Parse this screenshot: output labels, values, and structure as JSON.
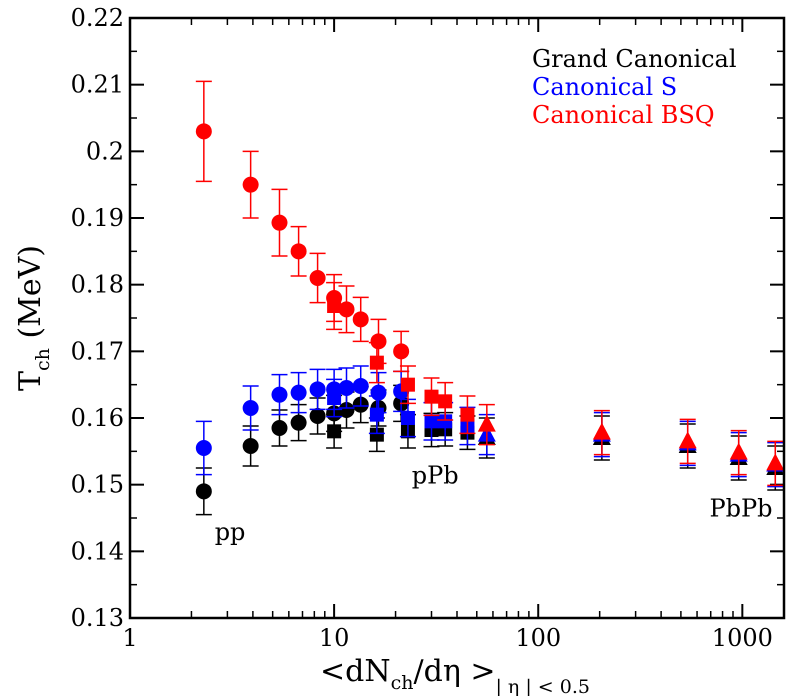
{
  "chart_data": {
    "type": "scatter",
    "xscale": "log",
    "xlim": [
      1,
      1600
    ],
    "ylim": [
      0.13,
      0.22
    ],
    "yticks": [
      "0.13",
      "0.14",
      "0.15",
      "0.16",
      "0.17",
      "0.18",
      "0.19",
      "0.2",
      "0.21",
      "0.22"
    ],
    "xticks": [
      "1",
      "10",
      "100",
      "1000"
    ],
    "ylabel": {
      "main": "T",
      "sub": "ch",
      "rest": " (MeV)"
    },
    "xlabel": {
      "p1": "<dN",
      "sub1": "ch",
      "p2": "/d",
      "eta": "η",
      "p3": " >",
      "sub2": "| η | < 0.5"
    },
    "legend_position": "top-right",
    "colors": {
      "grand": "#000000",
      "canon_s": "#0000ff",
      "canon_bsq": "#ff0000"
    },
    "series": [
      {
        "name": "Grand Canonical",
        "color": "#000000",
        "pp": [
          {
            "x": 2.3,
            "y": 0.149,
            "err": 0.0035
          },
          {
            "x": 3.9,
            "y": 0.1558,
            "err": 0.003
          },
          {
            "x": 5.4,
            "y": 0.1585,
            "err": 0.0027
          },
          {
            "x": 6.7,
            "y": 0.1593,
            "err": 0.0027
          },
          {
            "x": 8.3,
            "y": 0.1603,
            "err": 0.0027
          },
          {
            "x": 10.0,
            "y": 0.1607,
            "err": 0.0027
          },
          {
            "x": 11.5,
            "y": 0.1612,
            "err": 0.0027
          },
          {
            "x": 13.5,
            "y": 0.162,
            "err": 0.0027
          },
          {
            "x": 16.5,
            "y": 0.1615,
            "err": 0.0027
          },
          {
            "x": 21.3,
            "y": 0.1622,
            "err": 0.0027
          }
        ],
        "ppb": [
          {
            "x": 10.0,
            "y": 0.158,
            "err": 0.0025
          },
          {
            "x": 16.2,
            "y": 0.1575,
            "err": 0.0025
          },
          {
            "x": 23.0,
            "y": 0.158,
            "err": 0.0025
          },
          {
            "x": 30.0,
            "y": 0.1582,
            "err": 0.0025
          },
          {
            "x": 35.0,
            "y": 0.1583,
            "err": 0.0025
          },
          {
            "x": 45.0,
            "y": 0.1578,
            "err": 0.0025
          }
        ],
        "pbpb": [
          {
            "x": 56,
            "y": 0.157,
            "err": 0.003
          },
          {
            "x": 205,
            "y": 0.157,
            "err": 0.0033
          },
          {
            "x": 540,
            "y": 0.1558,
            "err": 0.0033
          },
          {
            "x": 960,
            "y": 0.154,
            "err": 0.0033
          },
          {
            "x": 1450,
            "y": 0.1525,
            "err": 0.0033
          }
        ]
      },
      {
        "name": "Canonical S",
        "color": "#0000ff",
        "pp": [
          {
            "x": 2.3,
            "y": 0.1555,
            "err": 0.004
          },
          {
            "x": 3.9,
            "y": 0.1615,
            "err": 0.0033
          },
          {
            "x": 5.4,
            "y": 0.1635,
            "err": 0.003
          },
          {
            "x": 6.7,
            "y": 0.1638,
            "err": 0.003
          },
          {
            "x": 8.3,
            "y": 0.1643,
            "err": 0.003
          },
          {
            "x": 10.0,
            "y": 0.1643,
            "err": 0.003
          },
          {
            "x": 11.5,
            "y": 0.1645,
            "err": 0.003
          },
          {
            "x": 13.5,
            "y": 0.1648,
            "err": 0.003
          },
          {
            "x": 16.5,
            "y": 0.1638,
            "err": 0.003
          },
          {
            "x": 21.3,
            "y": 0.164,
            "err": 0.003
          }
        ],
        "ppb": [
          {
            "x": 10.0,
            "y": 0.163,
            "err": 0.0028
          },
          {
            "x": 16.2,
            "y": 0.1605,
            "err": 0.0028
          },
          {
            "x": 23.0,
            "y": 0.16,
            "err": 0.0028
          },
          {
            "x": 30.0,
            "y": 0.1595,
            "err": 0.0028
          },
          {
            "x": 35.0,
            "y": 0.1595,
            "err": 0.0028
          },
          {
            "x": 45.0,
            "y": 0.1588,
            "err": 0.0028
          }
        ],
        "pbpb": [
          {
            "x": 56,
            "y": 0.1575,
            "err": 0.003
          },
          {
            "x": 205,
            "y": 0.1575,
            "err": 0.0033
          },
          {
            "x": 540,
            "y": 0.1562,
            "err": 0.0033
          },
          {
            "x": 960,
            "y": 0.1545,
            "err": 0.0033
          },
          {
            "x": 1450,
            "y": 0.153,
            "err": 0.0033
          }
        ]
      },
      {
        "name": "Canonical BSQ",
        "color": "#ff0000",
        "pp": [
          {
            "x": 2.3,
            "y": 0.203,
            "err": 0.0075
          },
          {
            "x": 3.9,
            "y": 0.195,
            "err": 0.005
          },
          {
            "x": 5.4,
            "y": 0.1893,
            "err": 0.005
          },
          {
            "x": 6.7,
            "y": 0.185,
            "err": 0.0037
          },
          {
            "x": 8.3,
            "y": 0.181,
            "err": 0.0037
          },
          {
            "x": 10.0,
            "y": 0.178,
            "err": 0.0035
          },
          {
            "x": 11.5,
            "y": 0.1763,
            "err": 0.0035
          },
          {
            "x": 13.5,
            "y": 0.1748,
            "err": 0.0033
          },
          {
            "x": 16.5,
            "y": 0.1715,
            "err": 0.0033
          },
          {
            "x": 21.3,
            "y": 0.17,
            "err": 0.003
          }
        ],
        "ppb": [
          {
            "x": 10.0,
            "y": 0.1768,
            "err": 0.0035
          },
          {
            "x": 16.2,
            "y": 0.1683,
            "err": 0.003
          },
          {
            "x": 23.0,
            "y": 0.165,
            "err": 0.0028
          },
          {
            "x": 30.0,
            "y": 0.1632,
            "err": 0.0028
          },
          {
            "x": 35.0,
            "y": 0.1625,
            "err": 0.0028
          },
          {
            "x": 45.0,
            "y": 0.1605,
            "err": 0.0028
          }
        ],
        "pbpb": [
          {
            "x": 56,
            "y": 0.159,
            "err": 0.003
          },
          {
            "x": 205,
            "y": 0.1578,
            "err": 0.0033
          },
          {
            "x": 540,
            "y": 0.1565,
            "err": 0.0033
          },
          {
            "x": 960,
            "y": 0.1548,
            "err": 0.0033
          },
          {
            "x": 1450,
            "y": 0.1532,
            "err": 0.0033
          }
        ]
      }
    ],
    "annotations": [
      {
        "text": "pp",
        "x": 2.6,
        "y": 0.1417
      },
      {
        "text": "pPb",
        "x": 24,
        "y": 0.1502
      },
      {
        "text": "PbPb",
        "x": 690,
        "y": 0.1452
      }
    ]
  }
}
